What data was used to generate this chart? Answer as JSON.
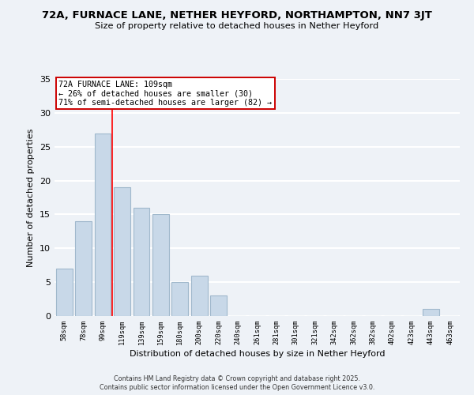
{
  "title": "72A, FURNACE LANE, NETHER HEYFORD, NORTHAMPTON, NN7 3JT",
  "subtitle": "Size of property relative to detached houses in Nether Heyford",
  "xlabel": "Distribution of detached houses by size in Nether Heyford",
  "ylabel": "Number of detached properties",
  "categories": [
    "58sqm",
    "78sqm",
    "99sqm",
    "119sqm",
    "139sqm",
    "159sqm",
    "180sqm",
    "200sqm",
    "220sqm",
    "240sqm",
    "261sqm",
    "281sqm",
    "301sqm",
    "321sqm",
    "342sqm",
    "362sqm",
    "382sqm",
    "402sqm",
    "423sqm",
    "443sqm",
    "463sqm"
  ],
  "values": [
    7,
    14,
    27,
    19,
    16,
    15,
    5,
    6,
    3,
    0,
    0,
    0,
    0,
    0,
    0,
    0,
    0,
    0,
    0,
    1,
    0
  ],
  "bar_color": "#c8d8e8",
  "bar_edge_color": "#a0b8cc",
  "background_color": "#eef2f7",
  "grid_color": "#ffffff",
  "red_line_x": 2.5,
  "annotation_title": "72A FURNACE LANE: 109sqm",
  "annotation_line1": "← 26% of detached houses are smaller (30)",
  "annotation_line2": "71% of semi-detached houses are larger (82) →",
  "annotation_box_color": "#ffffff",
  "annotation_box_edge": "#cc0000",
  "ylim": [
    0,
    35
  ],
  "yticks": [
    0,
    5,
    10,
    15,
    20,
    25,
    30,
    35
  ],
  "footnote1": "Contains HM Land Registry data © Crown copyright and database right 2025.",
  "footnote2": "Contains public sector information licensed under the Open Government Licence v3.0."
}
